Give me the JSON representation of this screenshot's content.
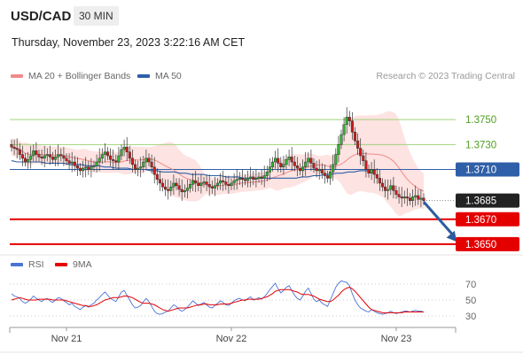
{
  "header": {
    "symbol": "USD/CAD",
    "timeframe": "30 MIN",
    "datetime": "Thursday, November 23, 2023 3:22:16 AM CET",
    "credit": "Research © 2023 Trading Central"
  },
  "legend": {
    "ma20_label": "MA 20 + Bollinger Bands",
    "ma50_label": "MA 50",
    "rsi_label": "RSI",
    "ma9_label": "9MA"
  },
  "colors": {
    "ma20": "#f08b8b",
    "bollinger_fill": "#fde3e1",
    "ma50": "#2f5fa8",
    "resistance": "#9fd27a",
    "support": "#e50000",
    "current": "#222222",
    "arrow": "#2b5c9e",
    "rsi": "#4a74d4",
    "rsi_ma": "#e60000"
  },
  "chart_data": [
    {
      "type": "candlestick",
      "title": "USD/CAD 30 MIN",
      "x_tick_labels": [
        "Nov 21",
        "Nov 22",
        "Nov 23"
      ],
      "x_tick_index": [
        20,
        80,
        140
      ],
      "ylim": [
        1.364,
        1.3775
      ],
      "levels": [
        {
          "label": "1.3750",
          "value": 1.375,
          "kind": "resistance"
        },
        {
          "label": "1.3730",
          "value": 1.373,
          "kind": "resistance"
        },
        {
          "label": "1.3710",
          "value": 1.371,
          "kind": "pivot"
        },
        {
          "label": "1.3685",
          "value": 1.3685,
          "kind": "current"
        },
        {
          "label": "1.3670",
          "value": 1.367,
          "kind": "support"
        },
        {
          "label": "1.3650",
          "value": 1.365,
          "kind": "support"
        }
      ],
      "forecast_arrow": {
        "from_index": 150,
        "from_value": 1.3684,
        "to_index": 162,
        "to_value": 1.3652
      },
      "close_series": [
        1.3728,
        1.3727,
        1.3726,
        1.3722,
        1.3719,
        1.3716,
        1.3718,
        1.3721,
        1.3725,
        1.3722,
        1.372,
        1.3719,
        1.3721,
        1.3722,
        1.372,
        1.3718,
        1.372,
        1.3722,
        1.3721,
        1.3719,
        1.3717,
        1.3715,
        1.3716,
        1.3713,
        1.3711,
        1.3709,
        1.3711,
        1.3712,
        1.371,
        1.3712,
        1.3713,
        1.3716,
        1.3719,
        1.3722,
        1.3724,
        1.3721,
        1.3718,
        1.3717,
        1.3716,
        1.3721,
        1.3726,
        1.3728,
        1.3724,
        1.3719,
        1.3714,
        1.371,
        1.3711,
        1.3712,
        1.3716,
        1.3719,
        1.3716,
        1.3712,
        1.3706,
        1.3702,
        1.3699,
        1.3696,
        1.3694,
        1.3693,
        1.3696,
        1.3699,
        1.3697,
        1.3694,
        1.3692,
        1.3693,
        1.3695,
        1.3698,
        1.3701,
        1.3699,
        1.3697,
        1.3699,
        1.37,
        1.3698,
        1.3696,
        1.3695,
        1.3697,
        1.3699,
        1.3701,
        1.37,
        1.3698,
        1.3697,
        1.3699,
        1.3701,
        1.3702,
        1.3703,
        1.3702,
        1.3701,
        1.3703,
        1.3704,
        1.3702,
        1.3703,
        1.3704,
        1.3703,
        1.3705,
        1.3708,
        1.3712,
        1.3716,
        1.3719,
        1.3715,
        1.3712,
        1.3714,
        1.3718,
        1.372,
        1.3716,
        1.3713,
        1.3711,
        1.3709,
        1.3712,
        1.3716,
        1.3719,
        1.3715,
        1.3711,
        1.3709,
        1.371,
        1.3707,
        1.3705,
        1.3703,
        1.3708,
        1.3714,
        1.3722,
        1.373,
        1.3738,
        1.3746,
        1.3752,
        1.3749,
        1.374,
        1.3733,
        1.3727,
        1.3721,
        1.3717,
        1.371,
        1.3707,
        1.371,
        1.3706,
        1.3703,
        1.3699,
        1.3696,
        1.3693,
        1.3694,
        1.3697,
        1.3693,
        1.369,
        1.3688,
        1.3687,
        1.3688,
        1.3687,
        1.3685,
        1.3688,
        1.3689,
        1.3686,
        1.3687,
        1.3685
      ],
      "ma50_series": [
        1.3717,
        1.3716,
        1.3716,
        1.3716,
        1.3716,
        1.3716,
        1.3715,
        1.3715,
        1.3715,
        1.3715,
        1.3714,
        1.3714,
        1.3714,
        1.3713,
        1.3713,
        1.3713,
        1.3712,
        1.3712,
        1.3711,
        1.3711,
        1.3711,
        1.371,
        1.371,
        1.371,
        1.3709,
        1.3709,
        1.3708,
        1.3708,
        1.3708,
        1.3707,
        1.3707,
        1.3706,
        1.3706,
        1.3706,
        1.3705,
        1.3705,
        1.3705,
        1.3704,
        1.3704,
        1.3704,
        1.3703,
        1.3703,
        1.3703,
        1.3703,
        1.3703,
        1.3703,
        1.3703,
        1.3703,
        1.3703,
        1.3703,
        1.3704,
        1.3704,
        1.3705,
        1.3705,
        1.3706,
        1.3706,
        1.3707,
        1.3707,
        1.3708,
        1.3708,
        1.3709,
        1.3709,
        1.3709,
        1.371,
        1.371,
        1.371,
        1.371,
        1.371,
        1.371,
        1.371,
        1.371,
        1.371
      ],
      "rsi_ylim": [
        20,
        80
      ],
      "rsi_ticks": [
        70,
        50,
        30
      ],
      "rsi_series": [
        58,
        55,
        54,
        52,
        48,
        46,
        48,
        51,
        55,
        52,
        50,
        48,
        51,
        52,
        49,
        47,
        50,
        53,
        52,
        49,
        47,
        44,
        46,
        42,
        40,
        38,
        41,
        43,
        41,
        44,
        46,
        50,
        53,
        57,
        60,
        56,
        52,
        50,
        48,
        54,
        60,
        62,
        56,
        50,
        44,
        40,
        41,
        43,
        48,
        52,
        48,
        42,
        36,
        33,
        32,
        33,
        35,
        36,
        40,
        44,
        42,
        38,
        36,
        38,
        41,
        45,
        49,
        46,
        43,
        45,
        47,
        44,
        41,
        40,
        43,
        46,
        49,
        47,
        44,
        43,
        46,
        49,
        51,
        52,
        50,
        49,
        52,
        54,
        50,
        51,
        53,
        51,
        54,
        58,
        63,
        67,
        71,
        64,
        59,
        62,
        66,
        68,
        62,
        56,
        52,
        50,
        55,
        61,
        65,
        58,
        51,
        48,
        50,
        46,
        44,
        42,
        50,
        58,
        66,
        71,
        74,
        73,
        72,
        68,
        58,
        50,
        44,
        40,
        38,
        36,
        35,
        38,
        36,
        34,
        33,
        32,
        33,
        34,
        36,
        34,
        33,
        34,
        35,
        36,
        36,
        35,
        36,
        37,
        36,
        36,
        35
      ],
      "rsi_ma_series": [
        50,
        51,
        52,
        53,
        52,
        51,
        50,
        50,
        50,
        50,
        51,
        51,
        51,
        51,
        51,
        50,
        50,
        50,
        50,
        50,
        49,
        48,
        47,
        46,
        45,
        44,
        43,
        43,
        42,
        42,
        43,
        44,
        46,
        48,
        50,
        51,
        52,
        53,
        53,
        53,
        54,
        55,
        55,
        54,
        53,
        51,
        49,
        47,
        46,
        46,
        46,
        45,
        44,
        42,
        40,
        38,
        37,
        36,
        37,
        38,
        39,
        40,
        40,
        40,
        40,
        41,
        42,
        43,
        44,
        44,
        45,
        45,
        44,
        44,
        44,
        44,
        45,
        45,
        45,
        45,
        46,
        47,
        48,
        49,
        50,
        50,
        51,
        51,
        51,
        51,
        51,
        52,
        53,
        54,
        56,
        58,
        61,
        62,
        63,
        63,
        63,
        63,
        62,
        61,
        60,
        58,
        57,
        57,
        57,
        56,
        55,
        53,
        51,
        50,
        49,
        48,
        48,
        50,
        53,
        56,
        60,
        63,
        65,
        66,
        64,
        61,
        57,
        53,
        49,
        45,
        41,
        38,
        37,
        36,
        35,
        34,
        34,
        34,
        34,
        34,
        34,
        34,
        34,
        35,
        35,
        35,
        35,
        35,
        35,
        35,
        35
      ]
    }
  ]
}
